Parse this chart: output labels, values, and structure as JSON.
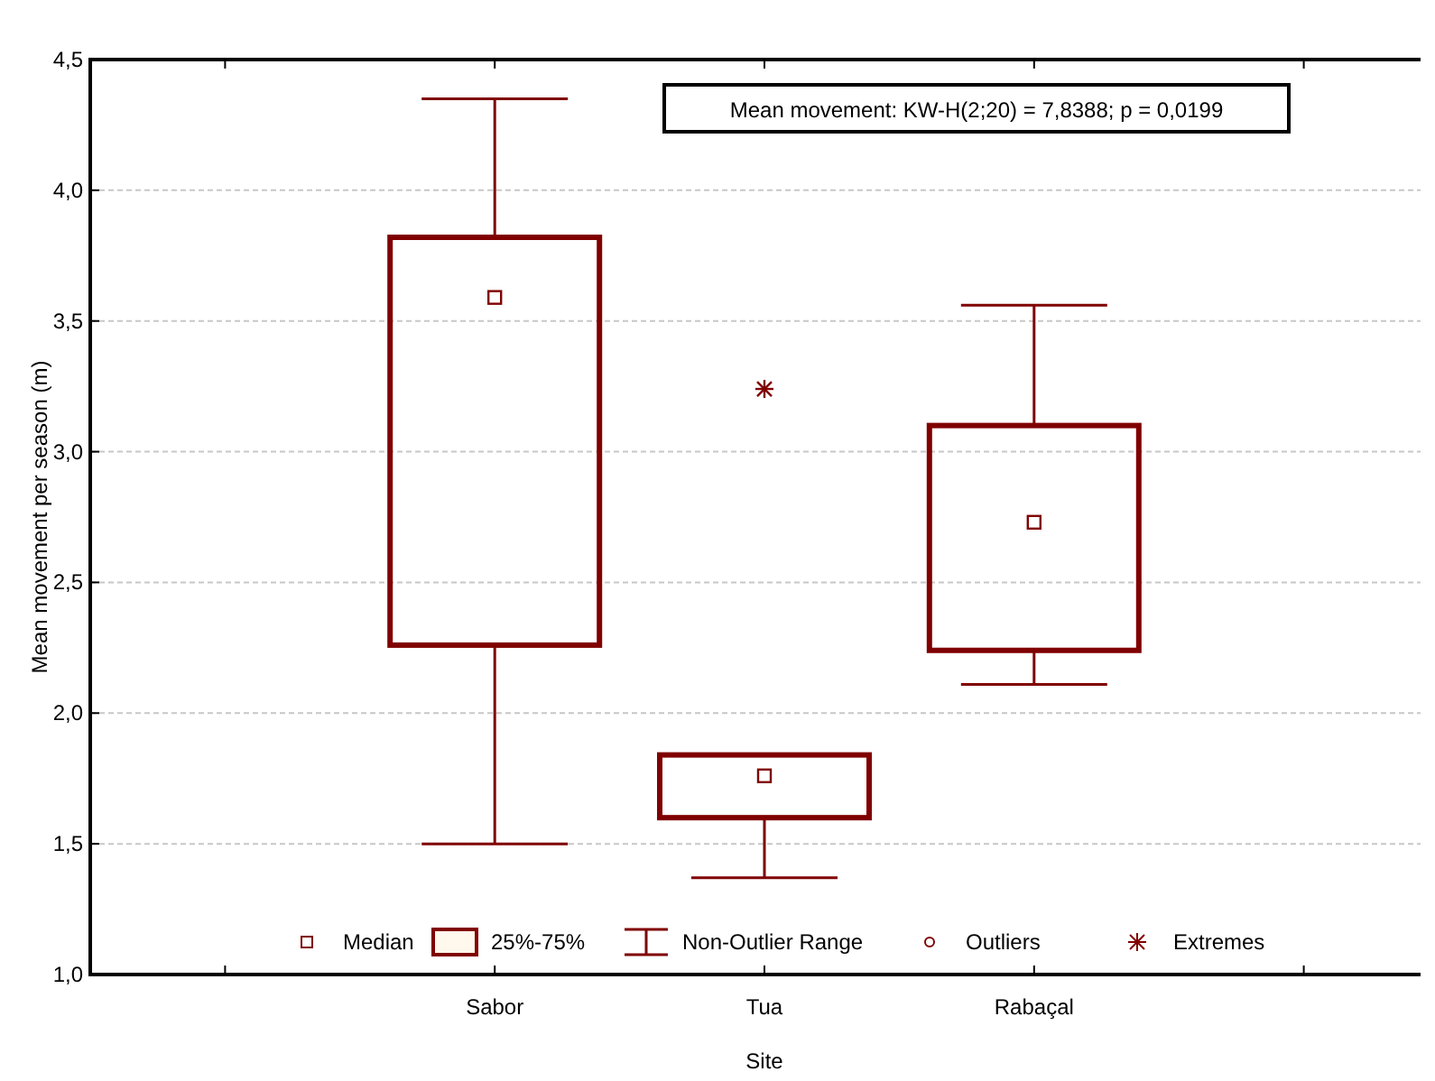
{
  "chart_data": {
    "type": "box",
    "xlabel": "Site",
    "ylabel": "Mean movement per season (m)",
    "categories": [
      null,
      "Sabor",
      "Tua",
      "Rabaçal",
      null
    ],
    "boxes": [
      null,
      {
        "low": 1.5,
        "q1": 2.26,
        "median": 3.59,
        "q3": 3.82,
        "high": 4.35
      },
      {
        "low": 1.37,
        "q1": 1.6,
        "median": 1.76,
        "q3": 1.84,
        "high": 1.84,
        "outliers": [
          3.24
        ]
      },
      {
        "low": 2.11,
        "q1": 2.24,
        "median": 2.73,
        "q3": 3.1,
        "high": 3.56
      },
      null
    ],
    "color": "#800000",
    "ylim": [
      1,
      4.5
    ],
    "yticks": [
      {
        "value": 1,
        "label": "1,0"
      },
      {
        "value": 1.5,
        "label": "1,5"
      },
      {
        "value": 2,
        "label": "2,0"
      },
      {
        "value": 2.5,
        "label": "2,5"
      },
      {
        "value": 3,
        "label": "3,0"
      },
      {
        "value": 3.5,
        "label": "3,5"
      },
      {
        "value": 4,
        "label": "4,0"
      },
      {
        "value": 4.5,
        "label": "4,5"
      }
    ],
    "grid": "y",
    "annotations": [
      "Mean movement:  KW-H(2;20) = 7,8388; p = 0,0199",
      "Median",
      "25%-75%",
      "Non-Outlier Range",
      "Outliers",
      "Extremes"
    ]
  }
}
